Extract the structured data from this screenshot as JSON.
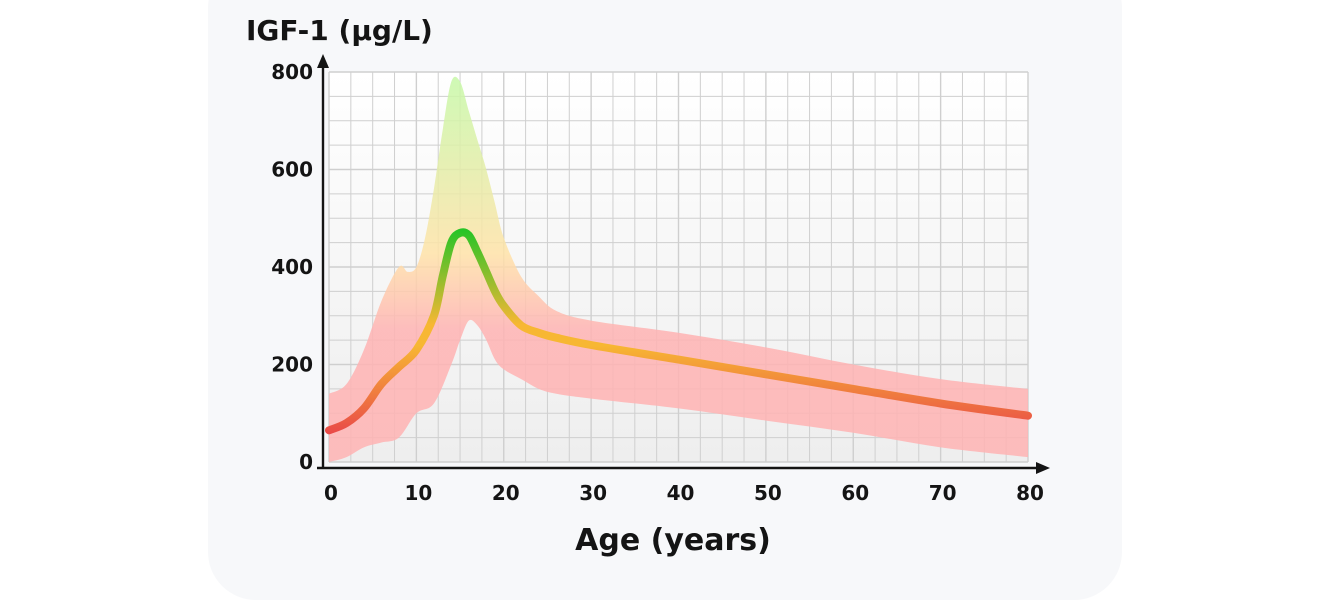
{
  "chart_data": {
    "type": "line",
    "ylabel": "IGF-1 (µg/L)",
    "xlabel": "Age (years)",
    "xlim": [
      0,
      80
    ],
    "ylim": [
      0,
      800
    ],
    "x_ticks": [
      "0",
      "10",
      "20",
      "30",
      "40",
      "50",
      "60",
      "70",
      "80"
    ],
    "y_ticks": [
      "0",
      "200",
      "400",
      "600",
      "800"
    ],
    "grid": true,
    "series": [
      {
        "role": "median",
        "x": [
          0,
          2,
          4,
          6,
          8,
          10,
          12,
          13,
          14,
          15,
          16,
          17,
          18,
          19,
          20,
          22,
          24,
          26,
          30,
          40,
          50,
          60,
          70,
          80
        ],
        "values": [
          65,
          80,
          110,
          160,
          195,
          230,
          300,
          380,
          450,
          470,
          465,
          430,
          390,
          350,
          320,
          280,
          265,
          255,
          240,
          210,
          180,
          150,
          120,
          95
        ]
      },
      {
        "role": "upper-limit",
        "x": [
          0,
          2,
          4,
          6,
          8,
          9,
          10,
          11,
          12,
          13,
          14,
          15,
          16,
          17,
          18,
          19,
          20,
          22,
          24,
          26,
          30,
          40,
          50,
          60,
          70,
          80
        ],
        "values": [
          140,
          160,
          230,
          330,
          400,
          390,
          400,
          460,
          560,
          680,
          780,
          780,
          720,
          660,
          600,
          530,
          460,
          380,
          340,
          310,
          290,
          265,
          235,
          200,
          170,
          150
        ]
      },
      {
        "role": "lower-limit",
        "x": [
          0,
          2,
          4,
          6,
          8,
          10,
          12,
          14,
          15,
          16,
          17,
          18,
          19,
          20,
          22,
          24,
          26,
          30,
          40,
          50,
          60,
          70,
          80
        ],
        "values": [
          0,
          10,
          30,
          40,
          50,
          100,
          120,
          200,
          250,
          290,
          280,
          250,
          210,
          190,
          170,
          150,
          140,
          130,
          110,
          85,
          60,
          30,
          10
        ]
      }
    ],
    "colors": {
      "low": "#e8424a",
      "mid": "#f7b733",
      "high": "#27c427",
      "band_low": "#ffb3b3",
      "band_mid": "#ffe3a8",
      "band_high": "#c8f8a8",
      "grid": "#cfcfcf",
      "axis": "#141414"
    }
  }
}
